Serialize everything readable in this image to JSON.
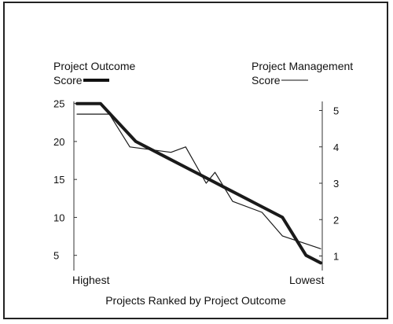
{
  "chart_data": {
    "type": "line",
    "xlabel": "Projects Ranked by Project Outcome",
    "x_tick_labels": [
      "Highest",
      "Lowest"
    ],
    "left_axis": {
      "label_line1": "Project Outcome",
      "label_line2": "Score",
      "ticks": [
        25,
        20,
        15,
        10,
        5
      ],
      "ylim": [
        3,
        26
      ]
    },
    "right_axis": {
      "label_line1": "Project Management",
      "label_line2": "Score",
      "ticks": [
        5,
        4,
        3,
        2,
        1
      ],
      "ylim": [
        0.6,
        5.4
      ]
    },
    "x": [
      1,
      2,
      3,
      4,
      5,
      6,
      7,
      8,
      9,
      10
    ],
    "series": [
      {
        "name": "Project Outcome Score",
        "axis": "left",
        "style": "thick",
        "color": "#1a1a1a",
        "values": [
          25.0,
          25.0,
          20.0,
          18.0,
          16.0,
          14.0,
          12.0,
          10.0,
          5.0,
          4.0
        ],
        "x": [
          1,
          1.8,
          3.0,
          4.0,
          5.0,
          6.0,
          7.0,
          8.0,
          8.8,
          9.3
        ]
      },
      {
        "name": "Project Management Score",
        "axis": "right",
        "style": "thin",
        "color": "#1a1a1a",
        "values": [
          4.9,
          4.9,
          4.0,
          3.85,
          4.0,
          3.0,
          3.3,
          2.5,
          2.2,
          1.55,
          1.2
        ],
        "x": [
          1,
          2.1,
          2.8,
          4.2,
          4.7,
          5.4,
          5.7,
          6.3,
          7.3,
          8.0,
          9.3
        ]
      }
    ]
  }
}
